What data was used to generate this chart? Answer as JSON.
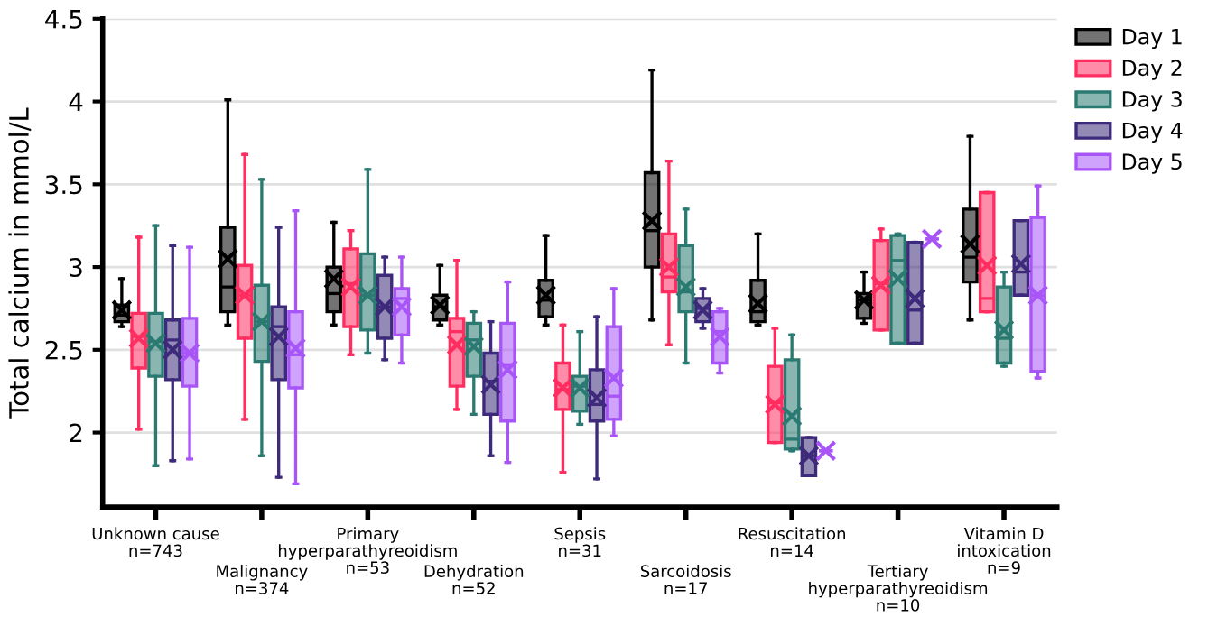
{
  "chart_data": {
    "type": "box",
    "ylabel": "Total calcium in mmol/L",
    "categories": [
      "Unknown cause\nn=743",
      "Malignancy\nn=374",
      "Primary\nhyperparathyreoidism\nn=53",
      "Dehydration\nn=52",
      "Sepsis\nn=31",
      "Sarcoidosis\nn=17",
      "Resuscitation\nn=14",
      "Tertiary\nhyperparathyreoidism\nn=10",
      "Vitamin D\nintoxication\nn=9"
    ],
    "ylim": [
      1.55,
      4.5
    ],
    "yticks": [
      2,
      2.5,
      3,
      3.5,
      4,
      4.5
    ],
    "grid": "y",
    "legend": "top right",
    "marker": "cross",
    "series": [
      {
        "name": "Day 1",
        "color": "#000000",
        "boxes": [
          {
            "low": 2.64,
            "q1": 2.67,
            "median": 2.71,
            "q3": 2.77,
            "high": 2.93,
            "mean": 2.74
          },
          {
            "low": 2.65,
            "q1": 2.73,
            "median": 2.88,
            "q3": 3.24,
            "high": 4.01,
            "mean": 3.05
          },
          {
            "low": 2.65,
            "q1": 2.73,
            "median": 2.84,
            "q3": 3.0,
            "high": 3.27,
            "mean": 2.93
          },
          {
            "low": 2.65,
            "q1": 2.68,
            "median": 2.76,
            "q3": 2.83,
            "high": 3.01,
            "mean": 2.77
          },
          {
            "low": 2.65,
            "q1": 2.7,
            "median": 2.8,
            "q3": 2.92,
            "high": 3.19,
            "mean": 2.83
          },
          {
            "low": 2.68,
            "q1": 3.0,
            "median": 3.22,
            "q3": 3.57,
            "high": 4.19,
            "mean": 3.28
          },
          {
            "low": 2.65,
            "q1": 2.67,
            "median": 2.73,
            "q3": 2.92,
            "high": 3.2,
            "mean": 2.78
          },
          {
            "low": 2.66,
            "q1": 2.69,
            "median": 2.8,
            "q3": 2.84,
            "high": 2.97,
            "mean": 2.8
          },
          {
            "low": 2.68,
            "q1": 2.91,
            "median": 3.06,
            "q3": 3.35,
            "high": 3.79,
            "mean": 3.14
          }
        ]
      },
      {
        "name": "Day 2",
        "color": "#ff2d60",
        "boxes": [
          {
            "low": 2.02,
            "q1": 2.39,
            "median": 2.58,
            "q3": 2.72,
            "high": 3.18,
            "mean": 2.57
          },
          {
            "low": 2.08,
            "q1": 2.57,
            "median": 2.83,
            "q3": 3.01,
            "high": 3.68,
            "mean": 2.83
          },
          {
            "low": 2.47,
            "q1": 2.64,
            "median": 2.9,
            "q3": 3.11,
            "high": 3.22,
            "mean": 2.88
          },
          {
            "low": 2.14,
            "q1": 2.28,
            "median": 2.61,
            "q3": 2.69,
            "high": 3.04,
            "mean": 2.53
          },
          {
            "low": 1.76,
            "q1": 2.14,
            "median": 2.26,
            "q3": 2.42,
            "high": 2.65,
            "mean": 2.27
          },
          {
            "low": 2.53,
            "q1": 2.85,
            "median": 2.94,
            "q3": 3.2,
            "high": 3.64,
            "mean": 3.0
          },
          {
            "low": 1.94,
            "q1": 1.94,
            "median": 2.18,
            "q3": 2.4,
            "high": 2.63,
            "mean": 2.17
          },
          {
            "low": 2.62,
            "q1": 2.62,
            "median": 2.9,
            "q3": 3.16,
            "high": 3.23,
            "mean": 2.89
          },
          {
            "low": 2.73,
            "q1": 2.73,
            "median": 2.81,
            "q3": 3.45,
            "high": 3.45,
            "mean": 3.01
          }
        ]
      },
      {
        "name": "Day 3",
        "color": "#2a7a72",
        "boxes": [
          {
            "low": 1.8,
            "q1": 2.34,
            "median": 2.55,
            "q3": 2.72,
            "high": 3.25,
            "mean": 2.54
          },
          {
            "low": 1.86,
            "q1": 2.43,
            "median": 2.67,
            "q3": 2.89,
            "high": 3.53,
            "mean": 2.67
          },
          {
            "low": 2.48,
            "q1": 2.62,
            "median": 2.83,
            "q3": 3.08,
            "high": 3.59,
            "mean": 2.83
          },
          {
            "low": 2.11,
            "q1": 2.34,
            "median": 2.56,
            "q3": 2.66,
            "high": 2.73,
            "mean": 2.52
          },
          {
            "low": 2.05,
            "q1": 2.13,
            "median": 2.28,
            "q3": 2.34,
            "high": 2.61,
            "mean": 2.27
          },
          {
            "low": 2.42,
            "q1": 2.73,
            "median": 2.85,
            "q3": 3.13,
            "high": 3.35,
            "mean": 2.88
          },
          {
            "low": 1.89,
            "q1": 1.9,
            "median": 1.96,
            "q3": 2.44,
            "high": 2.59,
            "mean": 2.1
          },
          {
            "low": 2.54,
            "q1": 2.54,
            "median": 3.04,
            "q3": 3.19,
            "high": 3.2,
            "mean": 2.93
          },
          {
            "low": 2.4,
            "q1": 2.42,
            "median": 2.57,
            "q3": 2.88,
            "high": 2.97,
            "mean": 2.62
          }
        ]
      },
      {
        "name": "Day 4",
        "color": "#3d2a7a",
        "boxes": [
          {
            "low": 1.83,
            "q1": 2.32,
            "median": 2.56,
            "q3": 2.68,
            "high": 3.13,
            "mean": 2.5
          },
          {
            "low": 1.73,
            "q1": 2.32,
            "median": 2.64,
            "q3": 2.76,
            "high": 3.24,
            "mean": 2.58
          },
          {
            "low": 2.44,
            "q1": 2.57,
            "median": 2.76,
            "q3": 2.95,
            "high": 3.06,
            "mean": 2.76
          },
          {
            "low": 1.86,
            "q1": 2.11,
            "median": 2.31,
            "q3": 2.48,
            "high": 2.67,
            "mean": 2.29
          },
          {
            "low": 1.72,
            "q1": 2.07,
            "median": 2.17,
            "q3": 2.38,
            "high": 2.7,
            "mean": 2.21
          },
          {
            "low": 2.63,
            "q1": 2.67,
            "median": 2.75,
            "q3": 2.81,
            "high": 2.87,
            "mean": 2.74
          },
          {
            "low": 1.74,
            "q1": 1.74,
            "median": 1.86,
            "q3": 1.97,
            "high": 1.97,
            "mean": 1.86
          },
          {
            "low": 2.54,
            "q1": 2.54,
            "median": 2.74,
            "q3": 3.15,
            "high": 3.15,
            "mean": 2.81
          },
          {
            "low": 2.83,
            "q1": 2.83,
            "median": 2.97,
            "q3": 3.28,
            "high": 3.28,
            "mean": 3.02
          }
        ]
      },
      {
        "name": "Day 5",
        "color": "#a855f7",
        "boxes": [
          {
            "low": 1.84,
            "q1": 2.28,
            "median": 2.48,
            "q3": 2.69,
            "high": 3.12,
            "mean": 2.48
          },
          {
            "low": 1.69,
            "q1": 2.27,
            "median": 2.47,
            "q3": 2.73,
            "high": 3.34,
            "mean": 2.51
          },
          {
            "low": 2.42,
            "q1": 2.59,
            "median": 2.81,
            "q3": 2.87,
            "high": 3.06,
            "mean": 2.76
          },
          {
            "low": 1.82,
            "q1": 2.07,
            "median": 2.41,
            "q3": 2.66,
            "high": 2.91,
            "mean": 2.38
          },
          {
            "low": 1.98,
            "q1": 2.08,
            "median": 2.22,
            "q3": 2.64,
            "high": 2.87,
            "mean": 2.33
          },
          {
            "low": 2.36,
            "q1": 2.42,
            "median": 2.61,
            "q3": 2.73,
            "high": 2.75,
            "mean": 2.58
          },
          {
            "low": 1.89,
            "q1": 1.89,
            "median": 1.89,
            "q3": 1.89,
            "high": 1.89,
            "mean": 1.89
          },
          {
            "low": 3.17,
            "q1": 3.17,
            "median": 3.17,
            "q3": 3.17,
            "high": 3.17,
            "mean": 3.17
          },
          {
            "low": 2.33,
            "q1": 2.37,
            "median": 2.83,
            "q3": 3.3,
            "high": 3.49,
            "mean": 2.83
          }
        ]
      }
    ]
  }
}
